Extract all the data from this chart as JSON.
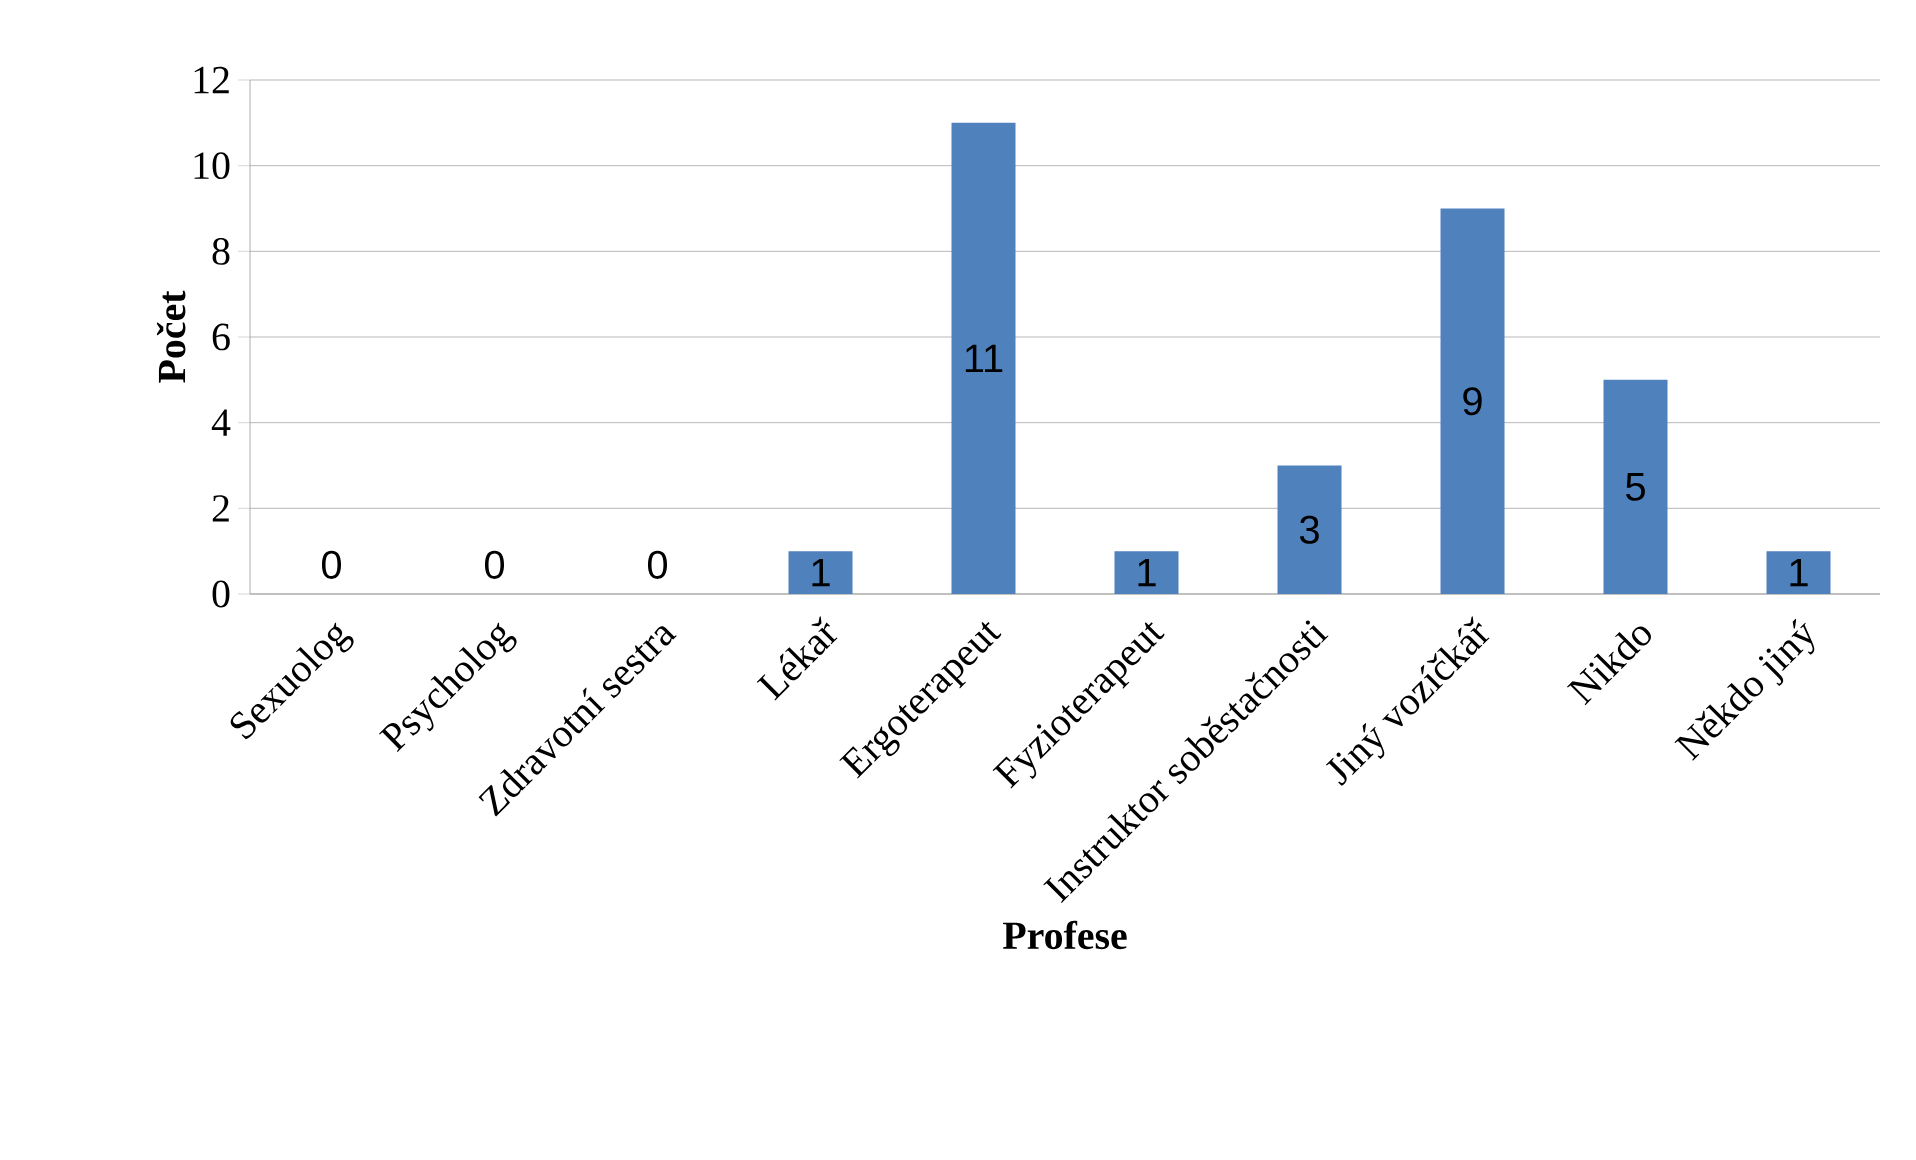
{
  "chart_data": {
    "type": "bar",
    "xlabel": "Profese",
    "ylabel": "Počet",
    "categories": [
      "Sexuolog",
      "Psycholog",
      "Zdravotní sestra",
      "Lékař",
      "Ergoterapeut",
      "Fyzioterapeut",
      "Instruktor soběstačnosti",
      "Jiný vozíčkář",
      "Nikdo",
      "Někdo jiný"
    ],
    "values": [
      0,
      0,
      0,
      1,
      11,
      1,
      3,
      9,
      5,
      1
    ],
    "color": "#4f81bd",
    "ylim": [
      0,
      12
    ],
    "yticks": [
      0,
      2,
      4,
      6,
      8,
      10,
      12
    ],
    "grid": "y",
    "data_labels": true,
    "legend": false
  }
}
